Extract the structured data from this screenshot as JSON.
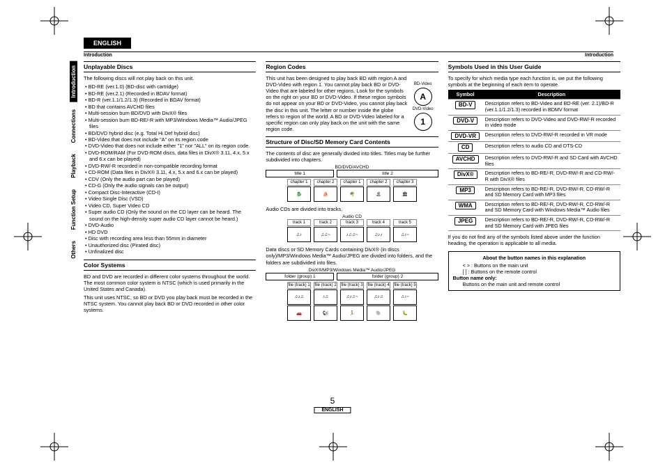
{
  "tab": "ENGLISH",
  "header_left": "Introduction",
  "header_right": "Introduction",
  "side_tabs": [
    "Introduction",
    "Connections",
    "Playback",
    "Function Setup",
    "Others"
  ],
  "col1": {
    "s1_title": "Unplayable Discs",
    "s1_intro": "The following discs will not play back on this unit.",
    "s1_items": [
      "BD-RE (ver.1.0) (BD-disc with cartridge)",
      "BD-RE (ver.2.1) (Recorded in BDAV format)",
      "BD-R (ver.1.1/1.2/1.3) (Recorded in BDAV format)",
      "BD that contains AVCHD files",
      "Multi-session burn BD/DVD with DivX® files",
      "Multi-session burn BD-RE/-R with MP3/Windows Media™ Audio/JPEG files",
      "BD/DVD hybrid disc (e.g. Total Hi Def hybrid disc)",
      "BD-Video that does not include \"A\" on its region code",
      "DVD-Video that does not include either \"1\" nor \"ALL\" on its region code.",
      "DVD-ROM/RAM (For DVD-ROM discs, data files in DivX® 3.11, 4.x, 5.x and 6.x can be played)",
      "DVD-RW/-R recorded in non-compatible recording format",
      "CD-ROM (Data files in DivX® 3.11, 4.x, 5.x and 6.x can be played)",
      "CDV (Only the audio part can be played)",
      "CD-G (Only the audio signals can be output)",
      "Compact Disc-Interactive (CD-I)",
      "Video Single Disc (VSD)",
      "Video CD, Super Video CD",
      "Super audio CD (Only the sound on the CD layer can be heard. The sound on the high-density super audio CD layer cannot be heard.)",
      "DVD-Audio",
      "HD DVD",
      "Disc with recording area less than 55mm in diameter",
      "Unauthorized disc (Pirated disc)",
      "Unfinalized disc"
    ],
    "s2_title": "Color Systems",
    "s2_p1": "BD and DVD are recorded in different color systems throughout the world. The most common color system is NTSC (which is used primarily in the United States and Canada).",
    "s2_p2": "This unit uses NTSC, so BD or DVD you play back must be recorded in the NTSC system. You cannot play back BD or DVD recorded in other color systems."
  },
  "col2": {
    "s1_title": "Region Codes",
    "s1_p1": "This unit has been designed to play back BD with region A and DVD-Video with region 1. You cannot play back BD or DVD-Video that are labeled for other regions. Look for the symbols on the right on your BD or DVD-Video. If these region symbols do not appear on your BD or DVD-Video, you cannot play back the disc in this unit. The letter or number inside the globe refers to region of the world. A BD or DVD-Video labeled for a specific region can only play back on the unit with the same region code.",
    "region_labels": {
      "bd": "BD-Video",
      "dvd": "DVD-Video",
      "a": "A",
      "one": "1"
    },
    "s2_title": "Structure of Disc/SD Memory Card Contents",
    "s2_p1": "The contents of disc are generally divided into titles. Titles may be further subdivided into chapters.",
    "diag1_label": "BD/DVD/AVCHD",
    "diag1_t1": "title 1",
    "diag1_t2": "title 2",
    "diag1_ch": [
      "chapter 1",
      "chapter 2",
      "chapter 1",
      "chapter 2",
      "chapter 3"
    ],
    "s2_p2": "Audio CDs are divided into tracks.",
    "diag2_label": "Audio CD",
    "diag2_tr": [
      "track 1",
      "track 2",
      "track 3",
      "track 4",
      "track 5"
    ],
    "s2_p3": "Data discs or SD Memory Cards containing DivX® (in discs only)/MP3/Windows Media™ Audio/JPEG are divided into folders, and the folders are subdivided into files.",
    "diag3_label": "DivX®/MP3/Windows Media™ Audio/JPEG",
    "diag3_f1": "folder (group) 1",
    "diag3_f2": "folder (group) 2",
    "diag3_files": [
      "file (track) 1",
      "file (track) 2",
      "file (track) 3",
      "file (track) 4",
      "file (track) 5"
    ]
  },
  "col3": {
    "s1_title": "Symbols Used in this User Guide",
    "s1_p1": "To specify for which media type each function is, we put the following symbols at the beginning of each item to operate.",
    "th1": "Symbol",
    "th2": "Description",
    "rows": [
      {
        "sym": "BD-V",
        "desc": "Description refers to BD-Video and BD-RE (ver. 2.1)/BD-R (ver.1.1/1.2/1.3) recorded in BDMV format"
      },
      {
        "sym": "DVD-V",
        "desc": "Description refers to DVD-Video and DVD-RW/-R recorded in video mode"
      },
      {
        "sym": "DVD-VR",
        "desc": "Description refers to DVD-RW/-R recorded in VR mode"
      },
      {
        "sym": "CD",
        "desc": "Description refers to audio CD and DTS-CD"
      },
      {
        "sym": "AVCHD",
        "desc": "Description refers to DVD-RW/-R and SD Card with AVCHD files"
      },
      {
        "sym": "DivX®",
        "desc": "Description refers to BD-RE/-R, DVD-RW/-R and CD-RW/-R with DivX® files"
      },
      {
        "sym": "MP3",
        "desc": "Description refers to BD-RE/-R, DVD-RW/-R, CD-RW/-R and SD Memory Card with MP3 files"
      },
      {
        "sym": "WMA",
        "desc": "Description refers to BD-RE/-R, DVD-RW/-R, CD-RW/-R and SD Memory Card with Windows Media™ Audio files"
      },
      {
        "sym": "JPEG",
        "desc": "Description refers to BD-RE/-R, DVD-RW/-R, CD-RW/-R and SD Memory Card with JPEG files"
      }
    ],
    "s1_p2": "If you do not find any of the symbols listed above under the function heading, the operation is applicable to all media.",
    "note_title": "About the button names in this explanation",
    "note_l1": "< > : Buttons on the main unit",
    "note_l2": "[ ] : Buttons on the remote control",
    "note_l3_label": "Button name only:",
    "note_l3": "Buttons on the main unit and remote control"
  },
  "page_num": "5",
  "footer_lang": "ENGLISH"
}
